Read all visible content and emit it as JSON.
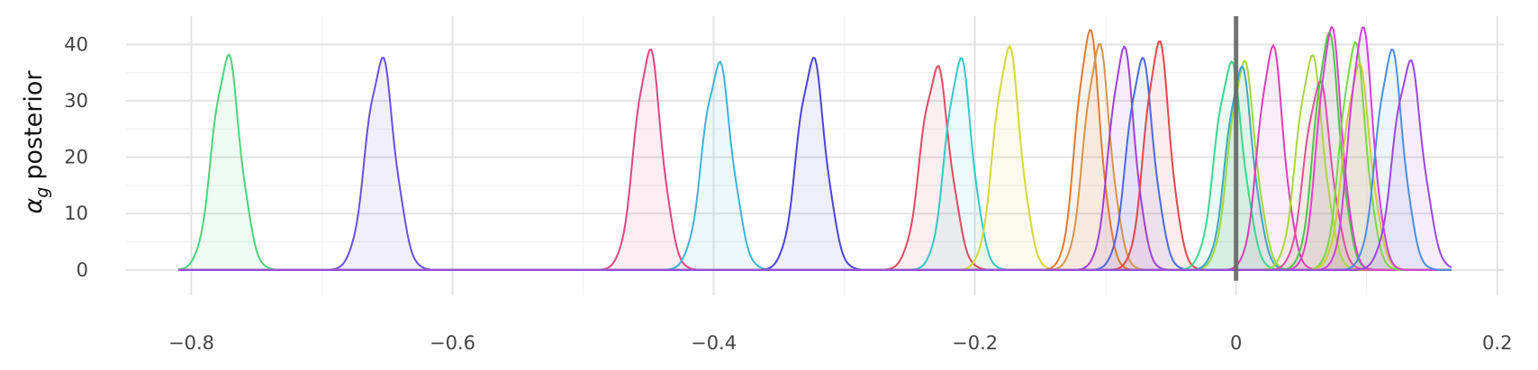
{
  "chart_data": {
    "type": "area",
    "title": "",
    "xlabel": "",
    "ylabel": "posterior",
    "ylabel_symbol": "α",
    "ylabel_subscript": "g",
    "xlim": [
      -0.85,
      0.205
    ],
    "ylim": [
      -4.5,
      45
    ],
    "x_ticks": [
      -0.8,
      -0.6,
      -0.4,
      -0.2,
      0,
      0.2
    ],
    "x_tick_labels": [
      "−0.8",
      "−0.6",
      "−0.4",
      "−0.2",
      "0",
      "0.2"
    ],
    "y_ticks": [
      0,
      10,
      20,
      30,
      40
    ],
    "y_tick_labels": [
      "0",
      "10",
      "20",
      "30",
      "40"
    ],
    "grid": true,
    "reference_line": {
      "x": 0,
      "color": "#666666"
    },
    "density_support": [
      -0.81,
      0.165
    ],
    "series": [
      {
        "color": "#4cd47a",
        "peak_x": -0.773,
        "peak_y": 37.5,
        "spread": 0.0105
      },
      {
        "color": "#6a4fe0",
        "peak_x": -0.655,
        "peak_y": 37.0,
        "spread": 0.0108
      },
      {
        "color": "#e0457f",
        "peak_x": -0.45,
        "peak_y": 38.5,
        "spread": 0.0102
      },
      {
        "color": "#3fb3d8",
        "peak_x": -0.397,
        "peak_y": 36.2,
        "spread": 0.011
      },
      {
        "color": "#4a45d8",
        "peak_x": -0.325,
        "peak_y": 37.0,
        "spread": 0.0106
      },
      {
        "color": "#e04a60",
        "peak_x": -0.23,
        "peak_y": 35.5,
        "spread": 0.011
      },
      {
        "color": "#35c8c8",
        "peak_x": -0.212,
        "peak_y": 37.0,
        "spread": 0.01
      },
      {
        "color": "#d8d63a",
        "peak_x": -0.175,
        "peak_y": 39.0,
        "spread": 0.01
      },
      {
        "color": "#e07a35",
        "peak_x": -0.113,
        "peak_y": 42.0,
        "spread": 0.0092
      },
      {
        "color": "#d8944a",
        "peak_x": -0.106,
        "peak_y": 39.5,
        "spread": 0.0098
      },
      {
        "color": "#a040d8",
        "peak_x": -0.087,
        "peak_y": 39.0,
        "spread": 0.0095
      },
      {
        "color": "#4a6ae0",
        "peak_x": -0.073,
        "peak_y": 37.0,
        "spread": 0.01
      },
      {
        "color": "#e04848",
        "peak_x": -0.06,
        "peak_y": 40.0,
        "spread": 0.0095
      },
      {
        "color": "#3ad890",
        "peak_x": -0.005,
        "peak_y": 36.3,
        "spread": 0.0105
      },
      {
        "color": "#a0d83a",
        "peak_x": 0.005,
        "peak_y": 36.5,
        "spread": 0.01
      },
      {
        "color": "#3aa8c8",
        "peak_x": 0.003,
        "peak_y": 35.5,
        "spread": 0.01
      },
      {
        "color": "#d840b8",
        "peak_x": 0.027,
        "peak_y": 39.2,
        "spread": 0.0095
      },
      {
        "color": "#a8d840",
        "peak_x": 0.057,
        "peak_y": 37.5,
        "spread": 0.01
      },
      {
        "color": "#e050a0",
        "peak_x": 0.063,
        "peak_y": 33.0,
        "spread": 0.01
      },
      {
        "color": "#48c848",
        "peak_x": 0.07,
        "peak_y": 41.5,
        "spread": 0.0095
      },
      {
        "color": "#e040d0",
        "peak_x": 0.072,
        "peak_y": 42.5,
        "spread": 0.009
      },
      {
        "color": "#78d848",
        "peak_x": 0.09,
        "peak_y": 39.8,
        "spread": 0.0095
      },
      {
        "color": "#cccc38",
        "peak_x": 0.093,
        "peak_y": 36.0,
        "spread": 0.01
      },
      {
        "color": "#d040e0",
        "peak_x": 0.096,
        "peak_y": 42.5,
        "spread": 0.009
      },
      {
        "color": "#4a90e0",
        "peak_x": 0.118,
        "peak_y": 38.5,
        "spread": 0.01
      },
      {
        "color": "#9a48e0",
        "peak_x": 0.132,
        "peak_y": 36.5,
        "spread": 0.011
      }
    ]
  }
}
